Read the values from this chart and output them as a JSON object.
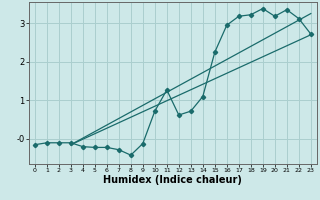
{
  "xlabel": "Humidex (Indice chaleur)",
  "bg_color": "#cde8e8",
  "grid_color": "#aacece",
  "line_color": "#1a6b6b",
  "xlim": [
    -0.5,
    23.5
  ],
  "ylim": [
    -0.65,
    3.55
  ],
  "yticks": [
    0,
    1,
    2,
    3
  ],
  "ytick_labels": [
    "-0",
    "1",
    "2",
    "3"
  ],
  "xticks": [
    0,
    1,
    2,
    3,
    4,
    5,
    6,
    7,
    8,
    9,
    10,
    11,
    12,
    13,
    14,
    15,
    16,
    17,
    18,
    19,
    20,
    21,
    22,
    23
  ],
  "line1_x": [
    3,
    23
  ],
  "line1_y": [
    -0.15,
    2.7
  ],
  "line2_x": [
    3,
    23
  ],
  "line2_y": [
    -0.15,
    3.25
  ],
  "zigzag_x": [
    0,
    1,
    2,
    3,
    4,
    5,
    6,
    7,
    8,
    9,
    10,
    11,
    12,
    13,
    14,
    15,
    16,
    17,
    18,
    19,
    20,
    21,
    22,
    23
  ],
  "zigzag_y": [
    -0.15,
    -0.1,
    -0.1,
    -0.1,
    -0.2,
    -0.22,
    -0.22,
    -0.28,
    -0.42,
    -0.12,
    0.72,
    1.27,
    0.62,
    0.72,
    1.1,
    2.25,
    2.95,
    3.18,
    3.22,
    3.38,
    3.18,
    3.35,
    3.12,
    2.72
  ]
}
